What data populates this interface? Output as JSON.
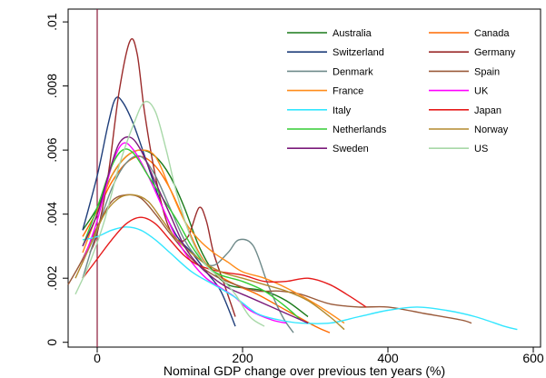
{
  "chart_data": {
    "type": "line",
    "title": "",
    "xlabel": "Nominal GDP change over previous ten years (%)",
    "ylabel": "",
    "xlim": [
      -40,
      610
    ],
    "ylim": [
      -0.00015,
      0.0104
    ],
    "x_ticks": [
      {
        "value": 0,
        "label": "0"
      },
      {
        "value": 200,
        "label": "200"
      },
      {
        "value": 400,
        "label": "400"
      },
      {
        "value": 600,
        "label": "600"
      }
    ],
    "y_ticks": [
      {
        "value": 0,
        "label": "0"
      },
      {
        "value": 0.002,
        "label": ".002"
      },
      {
        "value": 0.004,
        "label": ".004"
      },
      {
        "value": 0.006,
        "label": ".006"
      },
      {
        "value": 0.008,
        "label": ".008"
      },
      {
        "value": 0.01,
        "label": ".01"
      }
    ],
    "grid": false,
    "legend_position": "top-right",
    "reference_line": {
      "axis": "x",
      "value": 0,
      "color": "#8b1a3a"
    },
    "series": [
      {
        "name": "Australia",
        "color": "#1a7a1a",
        "points": [
          [
            -20,
            0.0035
          ],
          [
            0,
            0.0042
          ],
          [
            20,
            0.0052
          ],
          [
            40,
            0.0058
          ],
          [
            60,
            0.006
          ],
          [
            80,
            0.0058
          ],
          [
            100,
            0.0052
          ],
          [
            120,
            0.0042
          ],
          [
            140,
            0.003
          ],
          [
            160,
            0.0022
          ],
          [
            180,
            0.0018
          ],
          [
            200,
            0.0017
          ],
          [
            230,
            0.0016
          ],
          [
            260,
            0.0013
          ],
          [
            290,
            0.0008
          ]
        ]
      },
      {
        "name": "Canada",
        "color": "#ff6a00",
        "points": [
          [
            -20,
            0.0033
          ],
          [
            0,
            0.0041
          ],
          [
            20,
            0.005
          ],
          [
            40,
            0.0056
          ],
          [
            60,
            0.0058
          ],
          [
            80,
            0.0055
          ],
          [
            100,
            0.0048
          ],
          [
            120,
            0.0038
          ],
          [
            140,
            0.0028
          ],
          [
            160,
            0.0022
          ],
          [
            190,
            0.0018
          ],
          [
            220,
            0.0015
          ],
          [
            260,
            0.001
          ],
          [
            300,
            0.0005
          ],
          [
            320,
            0.0003
          ]
        ]
      },
      {
        "name": "Switzerland",
        "color": "#1f3e7a",
        "points": [
          [
            -20,
            0.0035
          ],
          [
            0,
            0.0052
          ],
          [
            15,
            0.0068
          ],
          [
            25,
            0.0076
          ],
          [
            35,
            0.0075
          ],
          [
            50,
            0.0068
          ],
          [
            70,
            0.0055
          ],
          [
            90,
            0.0042
          ],
          [
            110,
            0.0033
          ],
          [
            130,
            0.0028
          ],
          [
            150,
            0.0022
          ],
          [
            170,
            0.0016
          ],
          [
            190,
            0.0005
          ]
        ]
      },
      {
        "name": "Germany",
        "color": "#9b2b2b",
        "points": [
          [
            -10,
            0.0028
          ],
          [
            0,
            0.0034
          ],
          [
            15,
            0.0052
          ],
          [
            30,
            0.0078
          ],
          [
            45,
            0.0094
          ],
          [
            55,
            0.009
          ],
          [
            65,
            0.0072
          ],
          [
            80,
            0.0052
          ],
          [
            95,
            0.0038
          ],
          [
            110,
            0.0032
          ],
          [
            125,
            0.0033
          ],
          [
            140,
            0.0042
          ],
          [
            150,
            0.0038
          ],
          [
            160,
            0.0028
          ],
          [
            175,
            0.0018
          ],
          [
            190,
            0.0008
          ]
        ]
      },
      {
        "name": "Denmark",
        "color": "#6f8a8a",
        "points": [
          [
            -20,
            0.002
          ],
          [
            0,
            0.0035
          ],
          [
            20,
            0.0048
          ],
          [
            40,
            0.0056
          ],
          [
            60,
            0.0058
          ],
          [
            80,
            0.0052
          ],
          [
            100,
            0.0042
          ],
          [
            120,
            0.0032
          ],
          [
            140,
            0.0026
          ],
          [
            160,
            0.0024
          ],
          [
            180,
            0.0028
          ],
          [
            195,
            0.0032
          ],
          [
            215,
            0.003
          ],
          [
            235,
            0.0018
          ],
          [
            255,
            0.0008
          ],
          [
            270,
            0.0003
          ]
        ]
      },
      {
        "name": "Spain",
        "color": "#9a5a3a",
        "points": [
          [
            -40,
            0.0018
          ],
          [
            -20,
            0.0026
          ],
          [
            0,
            0.0036
          ],
          [
            20,
            0.0044
          ],
          [
            40,
            0.0046
          ],
          [
            60,
            0.0045
          ],
          [
            80,
            0.004
          ],
          [
            100,
            0.0034
          ],
          [
            130,
            0.0026
          ],
          [
            160,
            0.0021
          ],
          [
            190,
            0.0018
          ],
          [
            220,
            0.0016
          ],
          [
            250,
            0.0016
          ],
          [
            280,
            0.0015
          ],
          [
            320,
            0.0012
          ],
          [
            360,
            0.0011
          ],
          [
            400,
            0.0011
          ],
          [
            450,
            0.0009
          ],
          [
            500,
            0.0007
          ],
          [
            515,
            0.0006
          ]
        ]
      },
      {
        "name": "France",
        "color": "#ff8c1a",
        "points": [
          [
            -20,
            0.0028
          ],
          [
            0,
            0.004
          ],
          [
            20,
            0.0052
          ],
          [
            40,
            0.0058
          ],
          [
            60,
            0.006
          ],
          [
            80,
            0.0058
          ],
          [
            100,
            0.0048
          ],
          [
            120,
            0.0038
          ],
          [
            140,
            0.0032
          ],
          [
            160,
            0.0028
          ],
          [
            180,
            0.0025
          ],
          [
            200,
            0.0022
          ],
          [
            230,
            0.002
          ],
          [
            260,
            0.0017
          ],
          [
            300,
            0.0012
          ],
          [
            340,
            0.0006
          ]
        ]
      },
      {
        "name": "UK",
        "color": "#ff00ff",
        "points": [
          [
            -20,
            0.0025
          ],
          [
            0,
            0.0038
          ],
          [
            20,
            0.0055
          ],
          [
            35,
            0.0062
          ],
          [
            50,
            0.006
          ],
          [
            70,
            0.0052
          ],
          [
            90,
            0.0042
          ],
          [
            110,
            0.0032
          ],
          [
            130,
            0.0025
          ],
          [
            150,
            0.002
          ],
          [
            170,
            0.0017
          ],
          [
            190,
            0.0014
          ],
          [
            210,
            0.001
          ],
          [
            240,
            0.0007
          ],
          [
            260,
            0.0006
          ]
        ]
      },
      {
        "name": "Italy",
        "color": "#33e6ff",
        "points": [
          [
            -20,
            0.0032
          ],
          [
            0,
            0.0033
          ],
          [
            20,
            0.0035
          ],
          [
            40,
            0.0036
          ],
          [
            60,
            0.0035
          ],
          [
            80,
            0.0032
          ],
          [
            100,
            0.0028
          ],
          [
            130,
            0.0022
          ],
          [
            160,
            0.0018
          ],
          [
            190,
            0.0014
          ],
          [
            220,
            0.0009
          ],
          [
            250,
            0.0007
          ],
          [
            280,
            0.0006
          ],
          [
            320,
            0.0006
          ],
          [
            360,
            0.0008
          ],
          [
            400,
            0.001
          ],
          [
            440,
            0.0011
          ],
          [
            480,
            0.001
          ],
          [
            520,
            0.0008
          ],
          [
            560,
            0.0005
          ],
          [
            578,
            0.0004
          ]
        ]
      },
      {
        "name": "Japan",
        "color": "#e61a1a",
        "points": [
          [
            -20,
            0.002
          ],
          [
            0,
            0.0026
          ],
          [
            20,
            0.0032
          ],
          [
            40,
            0.0037
          ],
          [
            60,
            0.0039
          ],
          [
            80,
            0.0037
          ],
          [
            100,
            0.0032
          ],
          [
            120,
            0.0027
          ],
          [
            140,
            0.0024
          ],
          [
            170,
            0.0022
          ],
          [
            200,
            0.0021
          ],
          [
            230,
            0.0019
          ],
          [
            260,
            0.0019
          ],
          [
            290,
            0.002
          ],
          [
            320,
            0.0018
          ],
          [
            350,
            0.0014
          ],
          [
            370,
            0.0011
          ]
        ]
      },
      {
        "name": "Netherlands",
        "color": "#33cc33",
        "points": [
          [
            -20,
            0.003
          ],
          [
            0,
            0.0042
          ],
          [
            20,
            0.0055
          ],
          [
            35,
            0.006
          ],
          [
            50,
            0.0059
          ],
          [
            70,
            0.0052
          ],
          [
            90,
            0.0045
          ],
          [
            110,
            0.0038
          ],
          [
            130,
            0.003
          ],
          [
            150,
            0.0024
          ],
          [
            170,
            0.0021
          ],
          [
            200,
            0.0019
          ],
          [
            230,
            0.0016
          ],
          [
            260,
            0.0011
          ],
          [
            280,
            0.0007
          ]
        ]
      },
      {
        "name": "Norway",
        "color": "#b38a2e",
        "points": [
          [
            -30,
            0.002
          ],
          [
            -10,
            0.003
          ],
          [
            10,
            0.004
          ],
          [
            30,
            0.0045
          ],
          [
            50,
            0.0046
          ],
          [
            70,
            0.0044
          ],
          [
            90,
            0.0038
          ],
          [
            110,
            0.0032
          ],
          [
            140,
            0.0026
          ],
          [
            170,
            0.0022
          ],
          [
            200,
            0.002
          ],
          [
            230,
            0.0018
          ],
          [
            260,
            0.0016
          ],
          [
            290,
            0.0013
          ],
          [
            320,
            0.0008
          ],
          [
            340,
            0.0004
          ]
        ]
      },
      {
        "name": "Sweden",
        "color": "#7a1a7a",
        "points": [
          [
            -20,
            0.003
          ],
          [
            0,
            0.004
          ],
          [
            15,
            0.0052
          ],
          [
            30,
            0.0062
          ],
          [
            45,
            0.0064
          ],
          [
            60,
            0.006
          ],
          [
            80,
            0.005
          ],
          [
            100,
            0.004
          ],
          [
            120,
            0.003
          ],
          [
            140,
            0.0024
          ],
          [
            160,
            0.002
          ],
          [
            180,
            0.0017
          ],
          [
            210,
            0.0014
          ],
          [
            240,
            0.0011
          ],
          [
            270,
            0.0008
          ],
          [
            290,
            0.0006
          ]
        ]
      },
      {
        "name": "US",
        "color": "#a8d8a8",
        "points": [
          [
            -30,
            0.0015
          ],
          [
            -10,
            0.0025
          ],
          [
            10,
            0.0038
          ],
          [
            30,
            0.0055
          ],
          [
            50,
            0.0068
          ],
          [
            65,
            0.0075
          ],
          [
            80,
            0.0072
          ],
          [
            95,
            0.006
          ],
          [
            110,
            0.0046
          ],
          [
            130,
            0.0032
          ],
          [
            150,
            0.0024
          ],
          [
            170,
            0.002
          ],
          [
            190,
            0.0015
          ],
          [
            210,
            0.0008
          ],
          [
            230,
            0.0005
          ]
        ]
      }
    ]
  }
}
